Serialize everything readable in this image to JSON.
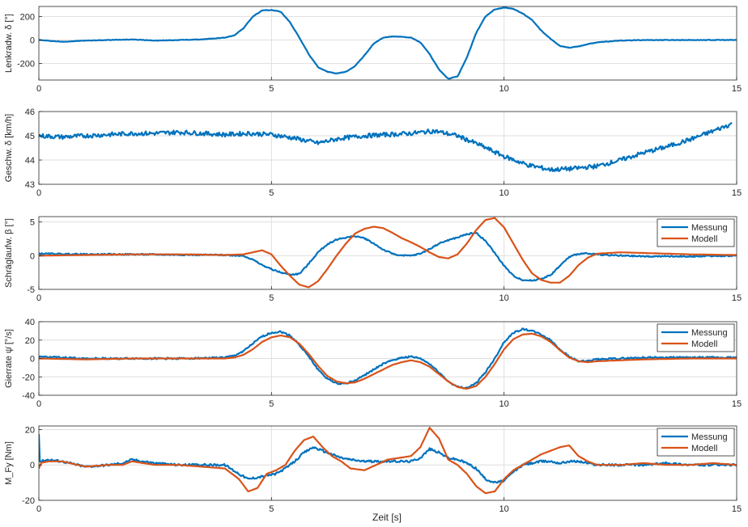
{
  "figure": {
    "xlabel": "Zeit [s]"
  },
  "colors": {
    "Messung": "#0072BD",
    "Modell": "#D95319",
    "grid": "#dedede",
    "axis": "#262626"
  },
  "chart_data": [
    {
      "type": "line",
      "ylabel": "Lenkradw. δ [°]",
      "xlim": [
        0,
        15
      ],
      "ylim": [
        -340,
        285
      ],
      "xticks": [
        0,
        5,
        10,
        15
      ],
      "yticks": [
        -200,
        0,
        200
      ],
      "grid": true,
      "legend": null,
      "series": [
        {
          "key": "Messung",
          "noise": 2,
          "x": [
            0,
            0.5,
            1,
            1.5,
            2,
            2.5,
            3,
            3.5,
            4,
            4.2,
            4.4,
            4.6,
            4.8,
            5.0,
            5.2,
            5.4,
            5.6,
            5.8,
            6.0,
            6.2,
            6.4,
            6.6,
            6.8,
            7.0,
            7.2,
            7.4,
            7.6,
            7.8,
            8.0,
            8.2,
            8.4,
            8.6,
            8.8,
            9.0,
            9.2,
            9.4,
            9.6,
            9.8,
            10.0,
            10.2,
            10.4,
            10.6,
            10.8,
            11.0,
            11.2,
            11.4,
            11.6,
            11.8,
            12,
            12.5,
            13,
            13.5,
            14,
            14.5,
            15
          ],
          "y": [
            0,
            -15,
            -5,
            0,
            5,
            -5,
            0,
            5,
            20,
            40,
            100,
            200,
            250,
            255,
            240,
            150,
            20,
            -120,
            -230,
            -270,
            -285,
            -270,
            -220,
            -130,
            -30,
            20,
            30,
            28,
            20,
            -20,
            -120,
            -250,
            -330,
            -310,
            -150,
            60,
            200,
            260,
            275,
            265,
            225,
            170,
            80,
            10,
            -50,
            -65,
            -55,
            -35,
            -20,
            -5,
            0,
            0,
            0,
            0,
            0
          ]
        }
      ]
    },
    {
      "type": "line",
      "ylabel": "Geschw. δ [km/h]",
      "xlim": [
        0,
        15
      ],
      "ylim": [
        43,
        46
      ],
      "xticks": [
        0,
        5,
        10,
        15
      ],
      "yticks": [
        43,
        44,
        45,
        46
      ],
      "grid": true,
      "legend": null,
      "series": [
        {
          "key": "Messung",
          "noise": 0.09,
          "x": [
            0,
            0.5,
            1,
            1.5,
            2,
            2.5,
            3,
            3.5,
            4,
            4.5,
            5,
            5.5,
            6,
            6.5,
            7,
            7.5,
            8,
            8.5,
            9,
            9.5,
            10,
            10.5,
            11,
            11.5,
            12,
            12.5,
            13,
            13.5,
            14,
            14.5,
            14.9
          ],
          "y": [
            45.0,
            44.95,
            45.0,
            45.05,
            45.1,
            45.1,
            45.15,
            45.1,
            45.05,
            45.1,
            45.05,
            44.9,
            44.7,
            44.9,
            45.0,
            45.05,
            45.1,
            45.2,
            45.0,
            44.6,
            44.15,
            43.8,
            43.6,
            43.65,
            43.75,
            44.0,
            44.3,
            44.55,
            44.85,
            45.2,
            45.5
          ]
        }
      ]
    },
    {
      "type": "line",
      "ylabel": "Schräglaufw. β [°]",
      "xlim": [
        0,
        15
      ],
      "ylim": [
        -5,
        5.8
      ],
      "xticks": [
        0,
        5,
        10,
        15
      ],
      "yticks": [
        -5,
        0,
        5
      ],
      "grid": true,
      "legend": "top-right",
      "series": [
        {
          "key": "Messung",
          "noise": 0.1,
          "x": [
            0,
            1,
            2,
            3,
            4,
            4.4,
            4.6,
            4.8,
            5.0,
            5.2,
            5.4,
            5.6,
            5.8,
            6.0,
            6.2,
            6.4,
            6.6,
            6.8,
            7.0,
            7.2,
            7.4,
            7.6,
            7.8,
            8.0,
            8.2,
            8.4,
            8.6,
            8.8,
            9.0,
            9.2,
            9.4,
            9.6,
            9.8,
            10.0,
            10.2,
            10.4,
            10.6,
            10.8,
            11.0,
            11.2,
            11.4,
            11.6,
            11.8,
            12,
            12.5,
            13,
            14,
            15
          ],
          "y": [
            0.3,
            0.2,
            0.2,
            0.15,
            0.1,
            0.0,
            -0.6,
            -1.4,
            -2.0,
            -2.5,
            -2.8,
            -2.7,
            -1.2,
            0.5,
            1.7,
            2.4,
            2.7,
            2.9,
            2.6,
            1.8,
            0.9,
            0.3,
            0.0,
            0.0,
            0.3,
            1.0,
            1.8,
            2.3,
            2.7,
            3.2,
            3.4,
            2.2,
            0.4,
            -1.5,
            -3.0,
            -3.6,
            -3.7,
            -3.4,
            -2.9,
            -1.5,
            -0.2,
            0.3,
            0.3,
            0.2,
            0.0,
            -0.1,
            -0.1,
            0.0
          ]
        },
        {
          "key": "Modell",
          "noise": 0,
          "x": [
            0,
            1,
            2,
            3,
            4,
            4.4,
            4.6,
            4.8,
            5.0,
            5.2,
            5.4,
            5.6,
            5.8,
            6.0,
            6.2,
            6.4,
            6.6,
            6.8,
            7.0,
            7.2,
            7.4,
            7.6,
            7.8,
            8.0,
            8.2,
            8.4,
            8.6,
            8.8,
            9.0,
            9.2,
            9.4,
            9.6,
            9.8,
            10.0,
            10.2,
            10.4,
            10.6,
            10.8,
            11.0,
            11.2,
            11.4,
            11.6,
            11.8,
            12,
            12.5,
            13,
            14,
            15
          ],
          "y": [
            0.0,
            0.1,
            0.2,
            0.2,
            0.1,
            0.2,
            0.5,
            0.8,
            0.2,
            -1.5,
            -3.0,
            -4.3,
            -4.7,
            -3.8,
            -2.0,
            0.0,
            1.8,
            3.3,
            4.0,
            4.3,
            4.1,
            3.4,
            2.6,
            2.0,
            1.3,
            0.5,
            -0.2,
            -0.4,
            0.2,
            1.8,
            3.8,
            5.3,
            5.6,
            4.2,
            1.8,
            -0.6,
            -2.6,
            -3.6,
            -4.0,
            -4.0,
            -3.0,
            -1.4,
            -0.3,
            0.3,
            0.5,
            0.4,
            0.2,
            0.1
          ]
        }
      ]
    },
    {
      "type": "line",
      "ylabel": "Gierrate ψ̇ [°/s]",
      "xlim": [
        0,
        15
      ],
      "ylim": [
        -40,
        40
      ],
      "xticks": [
        0,
        5,
        10,
        15
      ],
      "yticks": [
        -40,
        -20,
        0,
        20,
        40
      ],
      "grid": true,
      "legend": "top-right",
      "series": [
        {
          "key": "Messung",
          "noise": 0.9,
          "x": [
            0,
            1,
            2,
            3,
            4,
            4.2,
            4.4,
            4.6,
            4.8,
            5.0,
            5.2,
            5.4,
            5.6,
            5.8,
            6.0,
            6.2,
            6.4,
            6.6,
            6.8,
            7.0,
            7.2,
            7.4,
            7.6,
            7.8,
            8.0,
            8.2,
            8.4,
            8.6,
            8.8,
            9.0,
            9.2,
            9.4,
            9.6,
            9.8,
            10.0,
            10.2,
            10.4,
            10.6,
            10.8,
            11.0,
            11.2,
            11.4,
            11.6,
            11.8,
            12,
            13,
            14,
            15
          ],
          "y": [
            2,
            0,
            0,
            0,
            1,
            3,
            8,
            16,
            24,
            28,
            29,
            25,
            15,
            2,
            -12,
            -22,
            -27,
            -27,
            -24,
            -18,
            -12,
            -6,
            -2,
            1,
            2,
            0,
            -6,
            -15,
            -25,
            -31,
            -32,
            -27,
            -15,
            0,
            18,
            28,
            32,
            30,
            26,
            20,
            10,
            2,
            -3,
            -3,
            -1,
            1,
            1,
            1
          ]
        },
        {
          "key": "Modell",
          "noise": 0,
          "x": [
            0,
            1,
            2,
            3,
            4,
            4.2,
            4.4,
            4.6,
            4.8,
            5.0,
            5.2,
            5.4,
            5.6,
            5.8,
            6.0,
            6.2,
            6.4,
            6.6,
            6.8,
            7.0,
            7.2,
            7.4,
            7.6,
            7.8,
            8.0,
            8.2,
            8.4,
            8.6,
            8.8,
            9.0,
            9.2,
            9.4,
            9.6,
            9.8,
            10.0,
            10.2,
            10.4,
            10.6,
            10.8,
            11.0,
            11.2,
            11.4,
            11.6,
            11.8,
            12,
            13,
            14,
            15
          ],
          "y": [
            0,
            -1,
            0,
            0,
            0,
            1,
            4,
            10,
            18,
            23,
            25,
            23,
            16,
            5,
            -8,
            -19,
            -25,
            -27,
            -26,
            -22,
            -17,
            -12,
            -7,
            -4,
            -2,
            -4,
            -9,
            -17,
            -25,
            -31,
            -33,
            -30,
            -20,
            -6,
            10,
            21,
            26,
            27,
            24,
            18,
            9,
            1,
            -3,
            -4,
            -3,
            -1,
            0,
            0
          ]
        }
      ]
    },
    {
      "type": "line",
      "ylabel": "M_Fy [Nm]",
      "xlim": [
        0,
        15
      ],
      "ylim": [
        -20,
        22
      ],
      "xticks": [
        0,
        5,
        10,
        15
      ],
      "yticks": [
        -20,
        0,
        20
      ],
      "grid": true,
      "legend": "top-right",
      "series": [
        {
          "key": "Messung",
          "noise": 0.6,
          "x": [
            0,
            0.02,
            0.2,
            0.5,
            1,
            1.5,
            1.8,
            2,
            2.5,
            3,
            3.5,
            4,
            4.3,
            4.5,
            4.7,
            4.9,
            5.1,
            5.3,
            5.5,
            5.7,
            5.9,
            6.1,
            6.3,
            6.5,
            6.7,
            7.0,
            7.5,
            8.0,
            8.2,
            8.4,
            8.6,
            8.8,
            9.0,
            9.2,
            9.4,
            9.6,
            9.8,
            10.0,
            10.2,
            10.4,
            10.6,
            10.8,
            11.0,
            11.2,
            11.4,
            11.6,
            11.8,
            12,
            12.5,
            13,
            13.5,
            14,
            14.5,
            15
          ],
          "y": [
            18,
            2,
            3,
            2,
            -1,
            0,
            1,
            3,
            1,
            0,
            0,
            0,
            -5,
            -8,
            -7,
            -6,
            -5,
            -2,
            2,
            7,
            10,
            8,
            6,
            4,
            3,
            2,
            2,
            2,
            4,
            9,
            7,
            4,
            3,
            1,
            -2,
            -8,
            -10,
            -9,
            -4,
            0,
            1,
            2,
            2,
            1,
            2,
            2,
            1,
            0,
            0,
            0,
            1,
            0,
            0,
            0
          ]
        },
        {
          "key": "Modell",
          "noise": 0,
          "x": [
            0,
            0.02,
            0.2,
            0.5,
            1,
            1.5,
            1.8,
            2,
            2.5,
            3,
            3.5,
            4,
            4.3,
            4.5,
            4.7,
            4.9,
            5.1,
            5.3,
            5.5,
            5.7,
            5.9,
            6.1,
            6.3,
            6.5,
            6.7,
            7.0,
            7.5,
            8.0,
            8.2,
            8.4,
            8.6,
            8.8,
            9.0,
            9.2,
            9.4,
            9.6,
            9.8,
            10.0,
            10.2,
            10.4,
            10.6,
            10.8,
            11.0,
            11.2,
            11.4,
            11.6,
            11.8,
            12,
            12.5,
            13,
            13.5,
            14,
            14.5,
            15
          ],
          "y": [
            -2,
            1,
            2,
            2,
            -1,
            0,
            0,
            2,
            0,
            0,
            -1,
            -2,
            -8,
            -15,
            -13,
            -5,
            -3,
            0,
            8,
            14,
            16,
            10,
            5,
            2,
            -2,
            -3,
            3,
            5,
            10,
            21,
            15,
            3,
            0,
            -5,
            -12,
            -16,
            -15,
            -8,
            -3,
            0,
            3,
            6,
            8,
            10,
            11,
            5,
            2,
            0,
            0,
            1,
            0,
            0,
            1,
            0
          ]
        }
      ]
    }
  ],
  "legend": {
    "items": [
      {
        "key": "Messung",
        "label": "Messung"
      },
      {
        "key": "Modell",
        "label": "Modell"
      }
    ]
  }
}
